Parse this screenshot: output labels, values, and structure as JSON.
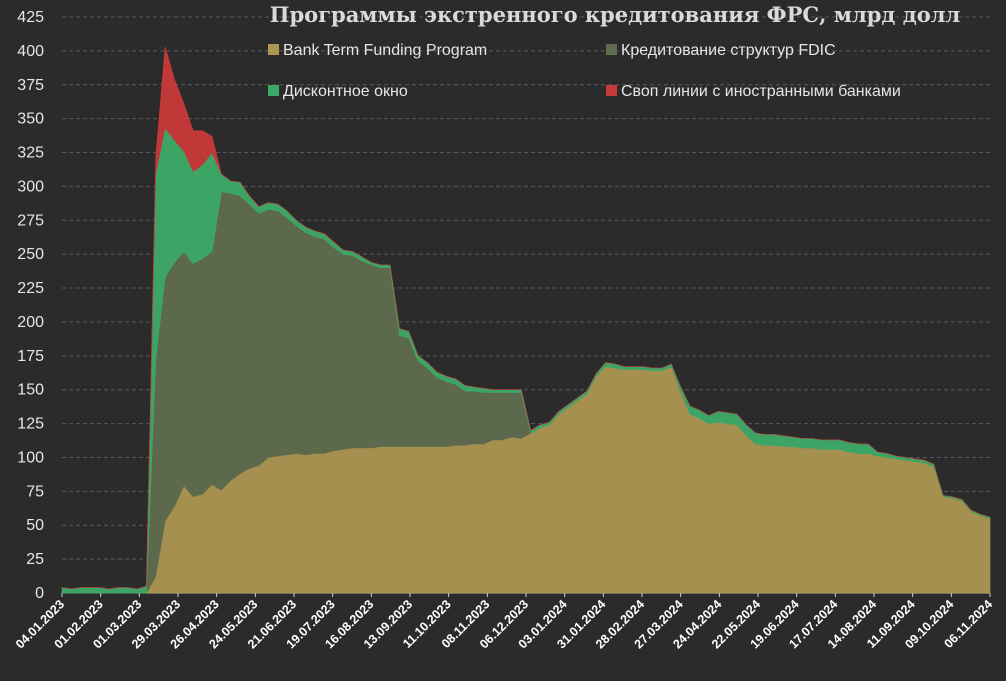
{
  "chart_data": {
    "type": "area",
    "stacked": true,
    "title": "Программы экстренного кредитования ФРС, млрд долл",
    "xlabel": "",
    "ylabel": "",
    "ylim": [
      0,
      425
    ],
    "yticks": [
      0,
      25,
      50,
      75,
      100,
      125,
      150,
      175,
      200,
      225,
      250,
      275,
      300,
      325,
      350,
      375,
      400,
      425
    ],
    "grid": true,
    "legend_position": "top",
    "x_tick_labels": [
      "04.01.2023",
      "01.02.2023",
      "01.03.2023",
      "29.03.2023",
      "26.04.2023",
      "24.05.2023",
      "21.06.2023",
      "19.07.2023",
      "16.08.2023",
      "13.09.2023",
      "11.10.2023",
      "08.11.2023",
      "06.12.2023",
      "03.01.2024",
      "31.01.2024",
      "28.02.2024",
      "27.03.2024",
      "24.04.2024",
      "22.05.2024",
      "19.06.2024",
      "17.07.2024",
      "14.08.2024",
      "11.09.2024",
      "09.10.2024",
      "06.11.2024"
    ],
    "x_start_index": 0,
    "x_end_index": 96,
    "series": [
      {
        "name": "Bank Term Funding Program",
        "color": "#ad9651",
        "points": [
          [
            0,
            0
          ],
          [
            8,
            0
          ],
          [
            9,
            0
          ],
          [
            10,
            12
          ],
          [
            11,
            53
          ],
          [
            12,
            64
          ],
          [
            13,
            79
          ],
          [
            14,
            71
          ],
          [
            15,
            73
          ],
          [
            16,
            80
          ],
          [
            17,
            76
          ],
          [
            18,
            83
          ],
          [
            19,
            88
          ],
          [
            20,
            92
          ],
          [
            21,
            94
          ],
          [
            22,
            100
          ],
          [
            23,
            101
          ],
          [
            24,
            102
          ],
          [
            25,
            103
          ],
          [
            26,
            102
          ],
          [
            27,
            103
          ],
          [
            28,
            103
          ],
          [
            29,
            105
          ],
          [
            30,
            106
          ],
          [
            31,
            107
          ],
          [
            32,
            107
          ],
          [
            33,
            107
          ],
          [
            34,
            108
          ],
          [
            35,
            108
          ],
          [
            36,
            108
          ],
          [
            37,
            108
          ],
          [
            38,
            108
          ],
          [
            39,
            108
          ],
          [
            40,
            108
          ],
          [
            41,
            108
          ],
          [
            42,
            109
          ],
          [
            43,
            109
          ],
          [
            44,
            110
          ],
          [
            45,
            110
          ],
          [
            46,
            113
          ],
          [
            47,
            113
          ],
          [
            48,
            115
          ],
          [
            49,
            114
          ],
          [
            50,
            118
          ],
          [
            51,
            122
          ],
          [
            52,
            124
          ],
          [
            53,
            132
          ],
          [
            54,
            137
          ],
          [
            55,
            142
          ],
          [
            56,
            147
          ],
          [
            57,
            160
          ],
          [
            58,
            167
          ],
          [
            59,
            166
          ],
          [
            60,
            165
          ],
          [
            61,
            165
          ],
          [
            62,
            165
          ],
          [
            63,
            164
          ],
          [
            64,
            164
          ],
          [
            65,
            167
          ],
          [
            66,
            148
          ],
          [
            67,
            132
          ],
          [
            68,
            129
          ],
          [
            69,
            125
          ],
          [
            70,
            126
          ],
          [
            71,
            125
          ],
          [
            72,
            124
          ],
          [
            73,
            116
          ],
          [
            74,
            110
          ],
          [
            75,
            109
          ],
          [
            76,
            109
          ],
          [
            77,
            108
          ],
          [
            78,
            108
          ],
          [
            79,
            107
          ],
          [
            80,
            107
          ],
          [
            81,
            106
          ],
          [
            82,
            106
          ],
          [
            83,
            106
          ],
          [
            84,
            104
          ],
          [
            85,
            103
          ],
          [
            86,
            103
          ],
          [
            87,
            101
          ],
          [
            88,
            100
          ],
          [
            89,
            99
          ],
          [
            90,
            98
          ],
          [
            91,
            97
          ],
          [
            92,
            96
          ],
          [
            93,
            93
          ],
          [
            94,
            71
          ],
          [
            95,
            70
          ],
          [
            96,
            68
          ],
          [
            97,
            60
          ],
          [
            98,
            57
          ],
          [
            99,
            55
          ]
        ]
      },
      {
        "name": "Кредитование структур FDIC",
        "color": "#5f6d4e",
        "points": [
          [
            0,
            0
          ],
          [
            8,
            0
          ],
          [
            9,
            0
          ],
          [
            10,
            160
          ],
          [
            11,
            180
          ],
          [
            12,
            180
          ],
          [
            13,
            173
          ],
          [
            14,
            172
          ],
          [
            15,
            174
          ],
          [
            16,
            172
          ],
          [
            17,
            220
          ],
          [
            18,
            212
          ],
          [
            19,
            205
          ],
          [
            20,
            195
          ],
          [
            21,
            186
          ],
          [
            22,
            183
          ],
          [
            23,
            181
          ],
          [
            24,
            175
          ],
          [
            25,
            168
          ],
          [
            26,
            164
          ],
          [
            27,
            160
          ],
          [
            28,
            158
          ],
          [
            29,
            150
          ],
          [
            30,
            144
          ],
          [
            31,
            142
          ],
          [
            32,
            138
          ],
          [
            33,
            135
          ],
          [
            34,
            132
          ],
          [
            35,
            132
          ],
          [
            36,
            82
          ],
          [
            37,
            80
          ],
          [
            38,
            63
          ],
          [
            39,
            58
          ],
          [
            40,
            51
          ],
          [
            41,
            48
          ],
          [
            42,
            45
          ],
          [
            43,
            40
          ],
          [
            44,
            39
          ],
          [
            45,
            38
          ],
          [
            46,
            35
          ],
          [
            47,
            35
          ],
          [
            48,
            33
          ],
          [
            49,
            34
          ],
          [
            50,
            0
          ],
          [
            99,
            0
          ]
        ]
      },
      {
        "name": "Дисконтное окно",
        "color": "#3dab68",
        "points": [
          [
            0,
            4
          ],
          [
            1,
            3
          ],
          [
            2,
            4
          ],
          [
            3,
            4
          ],
          [
            4,
            4
          ],
          [
            5,
            3
          ],
          [
            6,
            4
          ],
          [
            7,
            4
          ],
          [
            8,
            3
          ],
          [
            9,
            5
          ],
          [
            10,
            137
          ],
          [
            11,
            110
          ],
          [
            12,
            90
          ],
          [
            13,
            74
          ],
          [
            14,
            68
          ],
          [
            15,
            69
          ],
          [
            16,
            73
          ],
          [
            17,
            13
          ],
          [
            18,
            9
          ],
          [
            19,
            10
          ],
          [
            20,
            6
          ],
          [
            21,
            5
          ],
          [
            22,
            5
          ],
          [
            23,
            5
          ],
          [
            24,
            5
          ],
          [
            25,
            4
          ],
          [
            26,
            4
          ],
          [
            27,
            4
          ],
          [
            28,
            4
          ],
          [
            29,
            4
          ],
          [
            30,
            3
          ],
          [
            31,
            3
          ],
          [
            32,
            3
          ],
          [
            33,
            2
          ],
          [
            34,
            2
          ],
          [
            35,
            2
          ],
          [
            36,
            5
          ],
          [
            37,
            5
          ],
          [
            38,
            4
          ],
          [
            39,
            4
          ],
          [
            40,
            4
          ],
          [
            41,
            4
          ],
          [
            42,
            4
          ],
          [
            43,
            4
          ],
          [
            44,
            3
          ],
          [
            45,
            3
          ],
          [
            46,
            2
          ],
          [
            47,
            2
          ],
          [
            48,
            2
          ],
          [
            49,
            2
          ],
          [
            50,
            2
          ],
          [
            51,
            2
          ],
          [
            52,
            2
          ],
          [
            53,
            2
          ],
          [
            54,
            2
          ],
          [
            55,
            2
          ],
          [
            56,
            2
          ],
          [
            57,
            2
          ],
          [
            58,
            3
          ],
          [
            59,
            3
          ],
          [
            60,
            2
          ],
          [
            61,
            2
          ],
          [
            62,
            2
          ],
          [
            63,
            2
          ],
          [
            64,
            2
          ],
          [
            65,
            2
          ],
          [
            66,
            4
          ],
          [
            67,
            6
          ],
          [
            68,
            6
          ],
          [
            69,
            6
          ],
          [
            70,
            8
          ],
          [
            71,
            8
          ],
          [
            72,
            8
          ],
          [
            73,
            8
          ],
          [
            74,
            8
          ],
          [
            75,
            8
          ],
          [
            76,
            8
          ],
          [
            77,
            8
          ],
          [
            78,
            7
          ],
          [
            79,
            7
          ],
          [
            80,
            7
          ],
          [
            81,
            7
          ],
          [
            82,
            7
          ],
          [
            83,
            7
          ],
          [
            84,
            7
          ],
          [
            85,
            7
          ],
          [
            86,
            7
          ],
          [
            87,
            3
          ],
          [
            88,
            3
          ],
          [
            89,
            2
          ],
          [
            90,
            2
          ],
          [
            91,
            2
          ],
          [
            92,
            2
          ],
          [
            93,
            2
          ],
          [
            94,
            1
          ],
          [
            95,
            1
          ],
          [
            96,
            1
          ],
          [
            97,
            1
          ],
          [
            98,
            1
          ],
          [
            99,
            1
          ]
        ]
      },
      {
        "name": "Своп линии с иностранными банками",
        "color": "#c9393a",
        "points": [
          [
            0,
            0
          ],
          [
            9,
            0
          ],
          [
            10,
            12
          ],
          [
            11,
            60
          ],
          [
            12,
            45
          ],
          [
            13,
            35
          ],
          [
            14,
            30
          ],
          [
            15,
            25
          ],
          [
            16,
            12
          ],
          [
            17,
            0
          ],
          [
            99,
            0
          ]
        ]
      }
    ]
  }
}
